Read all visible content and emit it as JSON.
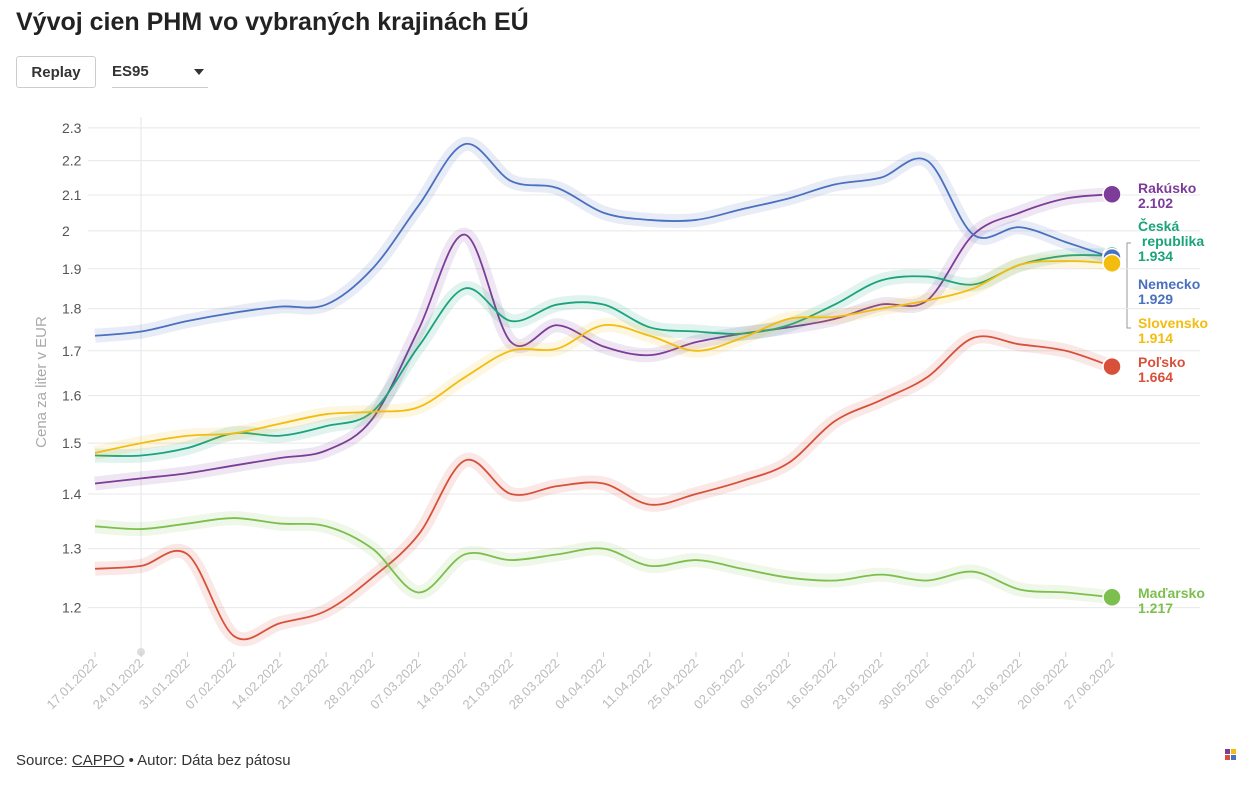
{
  "chart_data": {
    "type": "line",
    "title": "Vývoj cien PHM vo vybraných krajinách EÚ",
    "y_label": "Cena za liter v EUR",
    "log_scale": true,
    "grid": true,
    "categories": [
      "17.01.2022",
      "24.01.2022",
      "31.01.2022",
      "07.02.2022",
      "14.02.2022",
      "21.02.2022",
      "28.02.2022",
      "07.03.2022",
      "14.03.2022",
      "21.03.2022",
      "28.03.2022",
      "04.04.2022",
      "11.04.2022",
      "25.04.2022",
      "02.05.2022",
      "09.05.2022",
      "16.05.2022",
      "23.05.2022",
      "30.05.2022",
      "06.06.2022",
      "13.06.2022",
      "20.06.2022",
      "27.06.2022"
    ],
    "ylim": [
      1.13,
      2.35
    ],
    "yticks": [
      1.2,
      1.3,
      1.4,
      1.5,
      1.6,
      1.7,
      1.8,
      1.9,
      2,
      2.1,
      2.2,
      2.3
    ],
    "series": [
      {
        "name": "Rakúsko",
        "color": "#7d3c98",
        "values": [
          1.42,
          1.43,
          1.44,
          1.455,
          1.47,
          1.485,
          1.55,
          1.75,
          1.99,
          1.72,
          1.76,
          1.71,
          1.69,
          1.72,
          1.74,
          1.755,
          1.775,
          1.81,
          1.82,
          1.99,
          2.05,
          2.09,
          2.102
        ]
      },
      {
        "name": "Česká republika",
        "color": "#1ba37a",
        "values": [
          1.475,
          1.475,
          1.49,
          1.52,
          1.515,
          1.535,
          1.565,
          1.71,
          1.85,
          1.77,
          1.81,
          1.81,
          1.755,
          1.745,
          1.74,
          1.76,
          1.81,
          1.87,
          1.88,
          1.86,
          1.91,
          1.934,
          1.934
        ]
      },
      {
        "name": "Nemecko",
        "color": "#4a70c0",
        "values": [
          1.735,
          1.745,
          1.77,
          1.79,
          1.805,
          1.81,
          1.9,
          2.07,
          2.25,
          2.14,
          2.12,
          2.05,
          2.03,
          2.03,
          2.06,
          2.09,
          2.13,
          2.15,
          2.2,
          1.99,
          2.01,
          1.97,
          1.929
        ]
      },
      {
        "name": "Slovensko",
        "color": "#f2bd0e",
        "values": [
          1.48,
          1.5,
          1.515,
          1.52,
          1.54,
          1.56,
          1.565,
          1.575,
          1.64,
          1.7,
          1.705,
          1.76,
          1.735,
          1.7,
          1.73,
          1.775,
          1.78,
          1.8,
          1.82,
          1.85,
          1.91,
          1.92,
          1.914
        ]
      },
      {
        "name": "Poľsko",
        "color": "#d9503a",
        "values": [
          1.265,
          1.27,
          1.29,
          1.155,
          1.175,
          1.195,
          1.25,
          1.325,
          1.465,
          1.4,
          1.415,
          1.42,
          1.38,
          1.4,
          1.425,
          1.46,
          1.545,
          1.59,
          1.64,
          1.73,
          1.715,
          1.7,
          1.664
        ]
      },
      {
        "name": "Maďarsko",
        "color": "#7cbf4e",
        "values": [
          1.34,
          1.335,
          1.345,
          1.355,
          1.345,
          1.34,
          1.3,
          1.225,
          1.29,
          1.28,
          1.29,
          1.3,
          1.27,
          1.28,
          1.265,
          1.25,
          1.245,
          1.255,
          1.245,
          1.26,
          1.23,
          1.225,
          1.217
        ]
      }
    ]
  },
  "controls": {
    "replay": "Replay",
    "fuel": "ES95"
  },
  "source": {
    "prefix": "Source:",
    "link": "CAPPO",
    "suffix": "• Autor: Dáta bez pátosu"
  }
}
